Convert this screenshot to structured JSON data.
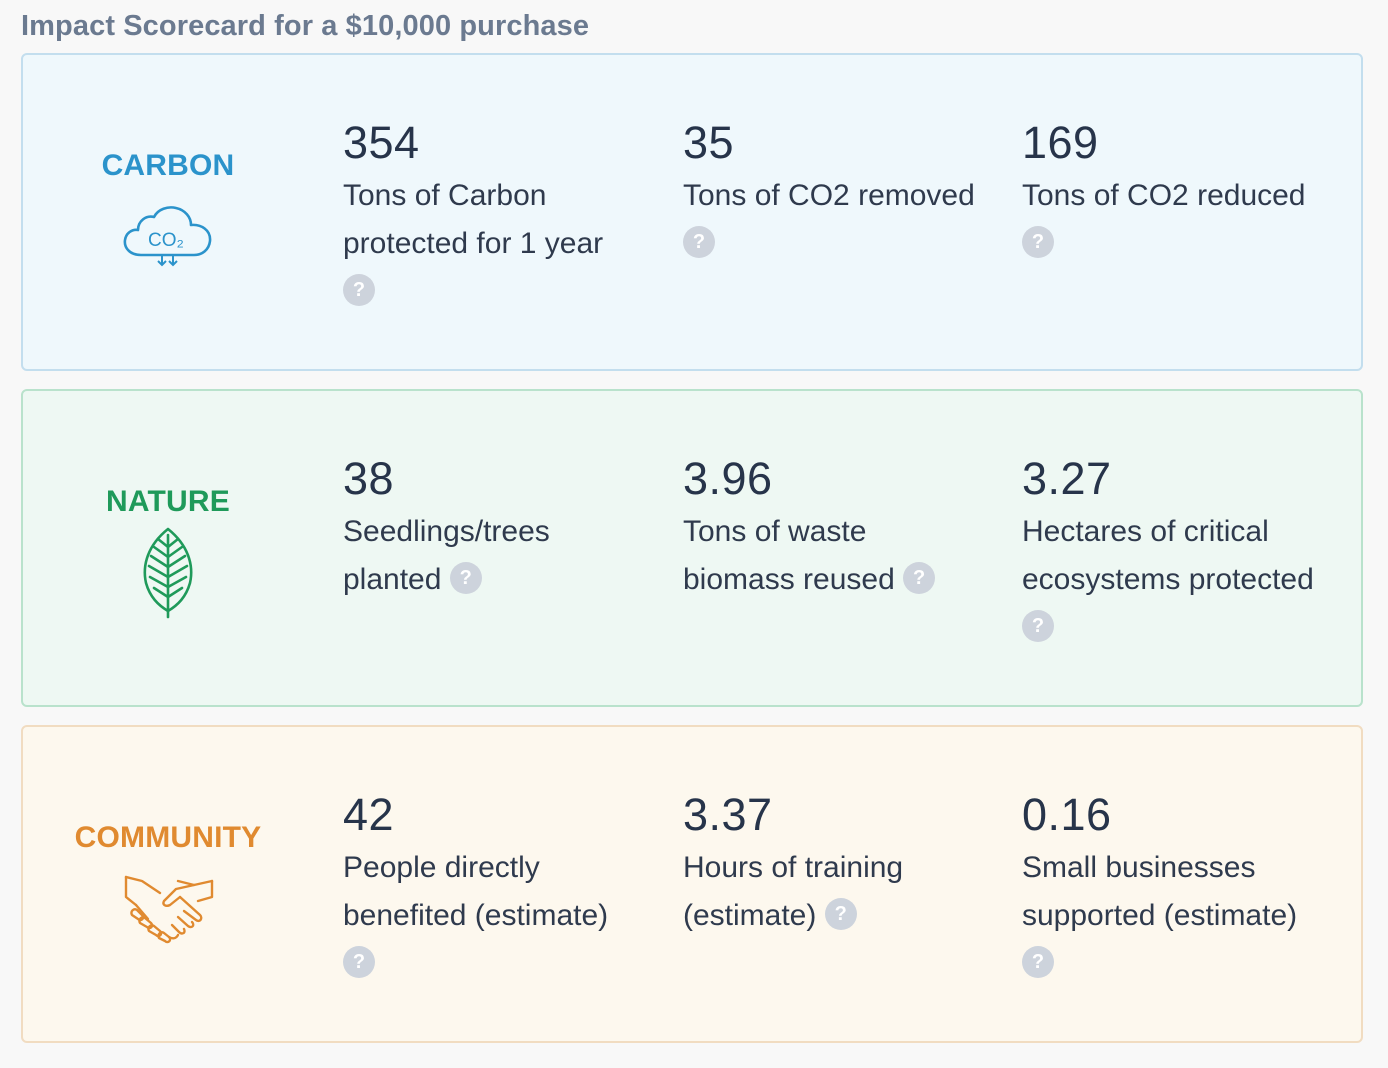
{
  "title": "Impact Scorecard for a $10,000 purchase",
  "help_glyph": "?",
  "categories": [
    {
      "label": "CARBON",
      "icon": "co2-cloud-icon",
      "color": "#2b93cb",
      "icon_text": "CO₂",
      "metrics": [
        {
          "value": "354",
          "desc": "Tons of Carbon protected for 1 year"
        },
        {
          "value": "35",
          "desc": "Tons of CO2 removed"
        },
        {
          "value": "169",
          "desc": "Tons of CO2 reduced"
        }
      ]
    },
    {
      "label": "NATURE",
      "icon": "leaf-icon",
      "color": "#1f9a5a",
      "metrics": [
        {
          "value": "38",
          "desc": "Seedlings/trees planted"
        },
        {
          "value": "3.96",
          "desc": "Tons of waste biomass reused"
        },
        {
          "value": "3.27",
          "desc": "Hectares of critical ecosystems protected"
        }
      ]
    },
    {
      "label": "COMMUNITY",
      "icon": "handshake-icon",
      "color": "#e08a30",
      "metrics": [
        {
          "value": "42",
          "desc": "People directly benefited (estimate)"
        },
        {
          "value": "3.37",
          "desc": "Hours of training (estimate)"
        },
        {
          "value": "0.16",
          "desc": "Small businesses supported (estimate)"
        }
      ]
    }
  ]
}
